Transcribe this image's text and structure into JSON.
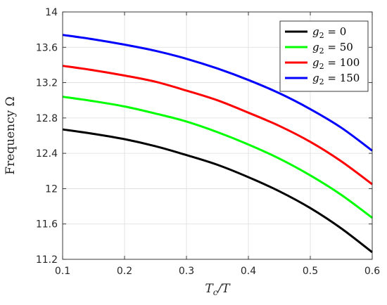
{
  "chart_data": {
    "type": "line",
    "title": "",
    "xlabel": "T_c/T",
    "ylabel": "Frequency Ω",
    "xlim": [
      0.1,
      0.6
    ],
    "ylim": [
      11.2,
      14
    ],
    "xticks": [
      0.1,
      0.2,
      0.3,
      0.4,
      0.5,
      0.6
    ],
    "yticks": [
      11.2,
      11.6,
      12,
      12.4,
      12.8,
      13.2,
      13.6,
      14
    ],
    "xtick_labels": [
      "0.1",
      "0.2",
      "0.3",
      "0.4",
      "0.5",
      "0.6"
    ],
    "ytick_labels": [
      "11.2",
      "11.6",
      "12",
      "12.4",
      "12.8",
      "13.2",
      "13.6",
      "14"
    ],
    "grid": true,
    "legend_position": "top-right",
    "x": [
      0.1,
      0.15,
      0.2,
      0.25,
      0.3,
      0.35,
      0.4,
      0.45,
      0.5,
      0.55,
      0.6
    ],
    "series": [
      {
        "name": "g2 = 0",
        "legend": {
          "var": "g",
          "sub": "2",
          "rest": " = 0"
        },
        "color": "#000000",
        "values": [
          12.67,
          12.62,
          12.56,
          12.48,
          12.38,
          12.27,
          12.13,
          11.97,
          11.78,
          11.55,
          11.28
        ]
      },
      {
        "name": "g2 = 50",
        "legend": {
          "var": "g",
          "sub": "2",
          "rest": " = 50"
        },
        "color": "#00ff00",
        "values": [
          13.04,
          12.99,
          12.93,
          12.85,
          12.76,
          12.64,
          12.5,
          12.34,
          12.15,
          11.93,
          11.67
        ]
      },
      {
        "name": "g2 = 100",
        "legend": {
          "var": "g",
          "sub": "2",
          "rest": " = 100"
        },
        "color": "#ff0000",
        "values": [
          13.39,
          13.34,
          13.28,
          13.21,
          13.11,
          13.0,
          12.86,
          12.71,
          12.53,
          12.31,
          12.05
        ]
      },
      {
        "name": "g2 = 150",
        "legend": {
          "var": "g",
          "sub": "2",
          "rest": " = 150"
        },
        "color": "#0000ff",
        "values": [
          13.74,
          13.69,
          13.63,
          13.56,
          13.47,
          13.36,
          13.23,
          13.08,
          12.9,
          12.69,
          12.43
        ]
      }
    ]
  }
}
